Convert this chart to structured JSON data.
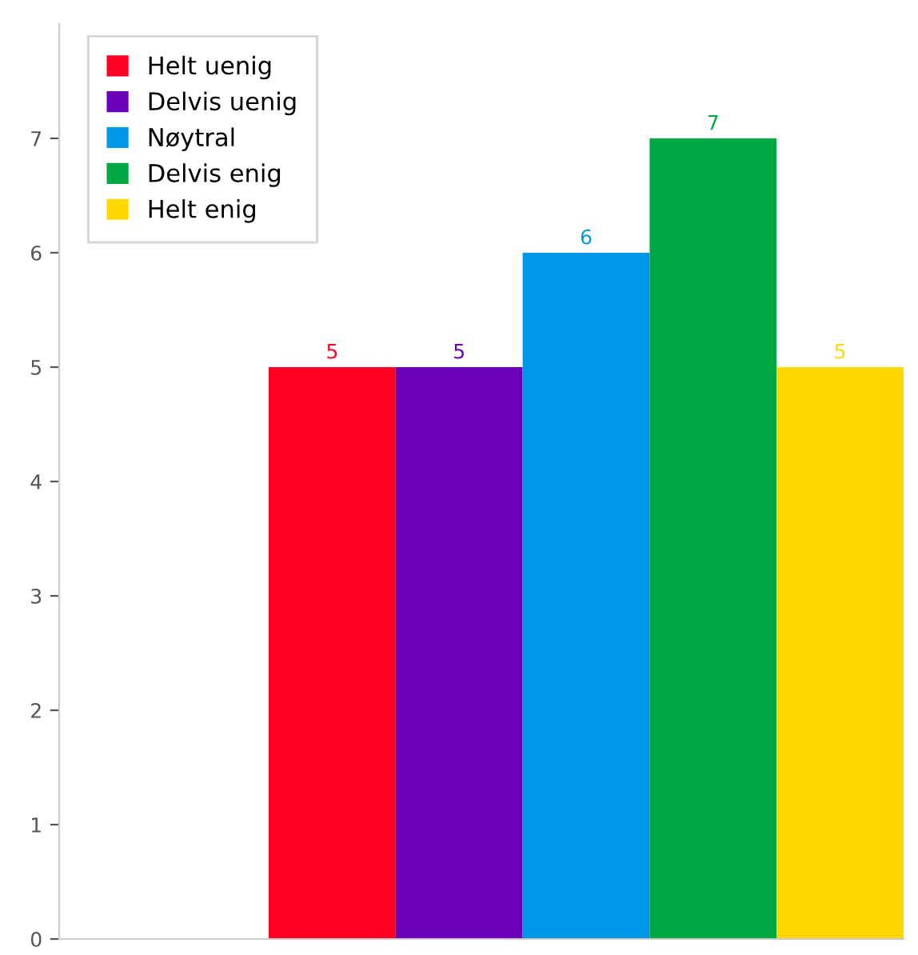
{
  "chart_data": {
    "type": "bar",
    "categories": [
      null
    ],
    "series": [
      {
        "name": "Helt uenig",
        "color": "#ff0022",
        "values": [
          5
        ]
      },
      {
        "name": "Delvis uenig",
        "color": "#6a00b8",
        "values": [
          5
        ]
      },
      {
        "name": "Nøytral",
        "color": "#0096e8",
        "values": [
          6
        ]
      },
      {
        "name": "Delvis enig",
        "color": "#00a843",
        "values": [
          7
        ]
      },
      {
        "name": "Helt enig",
        "color": "#ffd800",
        "values": [
          5
        ]
      }
    ],
    "ylim": [
      0,
      8
    ],
    "yticks": [
      0,
      1,
      2,
      3,
      4,
      5,
      6,
      7
    ],
    "data_labels": true,
    "legend": "top left",
    "grid": false
  }
}
